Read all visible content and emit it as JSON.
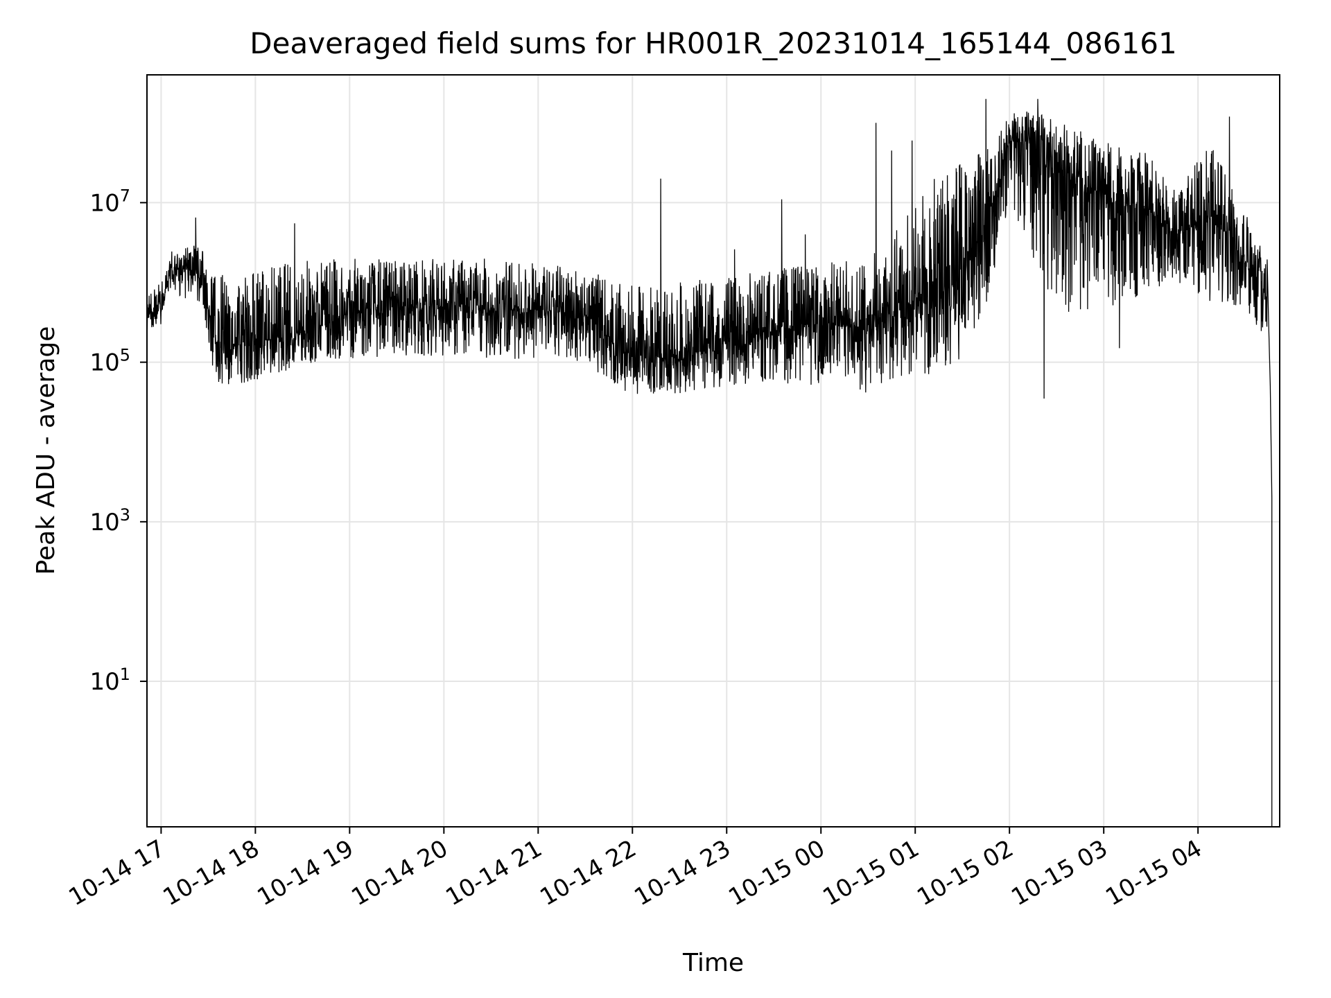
{
  "chart_data": {
    "type": "line",
    "title": "Deaveraged field sums for HR001R_20231014_165144_086161",
    "xlabel": "Time",
    "ylabel": "Peak ADU - average",
    "yscale": "log",
    "grid": true,
    "xlim": [
      "2023-10-14 16:51",
      "2023-10-15 04:52"
    ],
    "ylim": [
      0.15,
      400000000
    ],
    "x_ticks": [
      {
        "value": "2023-10-14 17:00",
        "label": "10-14 17"
      },
      {
        "value": "2023-10-14 18:00",
        "label": "10-14 18"
      },
      {
        "value": "2023-10-14 19:00",
        "label": "10-14 19"
      },
      {
        "value": "2023-10-14 20:00",
        "label": "10-14 20"
      },
      {
        "value": "2023-10-14 21:00",
        "label": "10-14 21"
      },
      {
        "value": "2023-10-14 22:00",
        "label": "10-14 22"
      },
      {
        "value": "2023-10-14 23:00",
        "label": "10-14 23"
      },
      {
        "value": "2023-10-15 00:00",
        "label": "10-15 00"
      },
      {
        "value": "2023-10-15 01:00",
        "label": "10-15 01"
      },
      {
        "value": "2023-10-15 02:00",
        "label": "10-15 02"
      },
      {
        "value": "2023-10-15 03:00",
        "label": "10-15 03"
      },
      {
        "value": "2023-10-15 04:00",
        "label": "10-15 04"
      }
    ],
    "y_ticks": [
      {
        "value": 10,
        "base": "10",
        "exp": "1"
      },
      {
        "value": 1000,
        "base": "10",
        "exp": "3"
      },
      {
        "value": 100000,
        "base": "10",
        "exp": "5"
      },
      {
        "value": 10000000,
        "base": "10",
        "exp": "7"
      }
    ],
    "series": [
      {
        "color": "#000000",
        "envelope": [
          {
            "t": "2023-10-14 16:51",
            "center": 400000,
            "low": 250000,
            "high": 900000
          },
          {
            "t": "2023-10-14 17:00",
            "center": 450000,
            "low": 300000,
            "high": 1000000
          },
          {
            "t": "2023-10-14 17:06",
            "center": 1500000,
            "low": 800000,
            "high": 2500000
          },
          {
            "t": "2023-10-14 17:24",
            "center": 1400000,
            "low": 500000,
            "high": 3000000
          },
          {
            "t": "2023-10-14 17:35",
            "center": 150000,
            "low": 45000,
            "high": 1200000
          },
          {
            "t": "2023-10-14 18:00",
            "center": 180000,
            "low": 60000,
            "high": 1500000
          },
          {
            "t": "2023-10-14 18:30",
            "center": 250000,
            "low": 90000,
            "high": 2000000
          },
          {
            "t": "2023-10-14 19:00",
            "center": 400000,
            "low": 110000,
            "high": 2000000
          },
          {
            "t": "2023-10-14 19:30",
            "center": 500000,
            "low": 120000,
            "high": 2000000
          },
          {
            "t": "2023-10-14 20:00",
            "center": 500000,
            "low": 120000,
            "high": 2000000
          },
          {
            "t": "2023-10-14 20:30",
            "center": 450000,
            "low": 110000,
            "high": 2000000
          },
          {
            "t": "2023-10-14 21:00",
            "center": 450000,
            "low": 110000,
            "high": 1800000
          },
          {
            "t": "2023-10-14 21:30",
            "center": 400000,
            "low": 100000,
            "high": 1500000
          },
          {
            "t": "2023-10-14 21:55",
            "center": 130000,
            "low": 40000,
            "high": 900000
          },
          {
            "t": "2023-10-14 22:30",
            "center": 110000,
            "low": 40000,
            "high": 1000000
          },
          {
            "t": "2023-10-14 23:00",
            "center": 180000,
            "low": 50000,
            "high": 1200000
          },
          {
            "t": "2023-10-14 23:30",
            "center": 250000,
            "low": 55000,
            "high": 1500000
          },
          {
            "t": "2023-10-15 00:00",
            "center": 300000,
            "low": 50000,
            "high": 1800000
          },
          {
            "t": "2023-10-15 00:30",
            "center": 250000,
            "low": 40000,
            "high": 2000000
          },
          {
            "t": "2023-10-15 00:55",
            "center": 500000,
            "low": 70000,
            "high": 8000000
          },
          {
            "t": "2023-10-15 01:20",
            "center": 800000,
            "low": 50000,
            "high": 30000000
          },
          {
            "t": "2023-10-15 01:45",
            "center": 5000000,
            "low": 500000,
            "high": 50000000
          },
          {
            "t": "2023-10-15 02:00",
            "center": 60000000,
            "low": 10000000,
            "high": 150000000
          },
          {
            "t": "2023-10-15 02:20",
            "center": 50000000,
            "low": 1000000,
            "high": 130000000
          },
          {
            "t": "2023-10-15 02:45",
            "center": 15000000,
            "low": 300000,
            "high": 80000000
          },
          {
            "t": "2023-10-15 03:00",
            "center": 10000000,
            "low": 400000,
            "high": 60000000
          },
          {
            "t": "2023-10-15 03:30",
            "center": 8000000,
            "low": 800000,
            "high": 40000000
          },
          {
            "t": "2023-10-15 03:45",
            "center": 3500000,
            "low": 1000000,
            "high": 15000000
          },
          {
            "t": "2023-10-15 04:10",
            "center": 8000000,
            "low": 500000,
            "high": 60000000
          },
          {
            "t": "2023-10-15 04:35",
            "center": 1200000,
            "low": 300000,
            "high": 5000000
          },
          {
            "t": "2023-10-15 04:44",
            "center": 700000,
            "low": 150000,
            "high": 2000000
          }
        ],
        "spikes": [
          {
            "t": "2023-10-14 17:22",
            "value": 6500000
          },
          {
            "t": "2023-10-14 18:25",
            "value": 5500000
          },
          {
            "t": "2023-10-14 22:18",
            "value": 20000000
          },
          {
            "t": "2023-10-14 23:05",
            "value": 2600000
          },
          {
            "t": "2023-10-14 23:35",
            "value": 11000000
          },
          {
            "t": "2023-10-14 23:50",
            "value": 4000000
          },
          {
            "t": "2023-10-15 00:35",
            "value": 100000000
          },
          {
            "t": "2023-10-15 00:45",
            "value": 45000000
          },
          {
            "t": "2023-10-15 00:58",
            "value": 60000000
          },
          {
            "t": "2023-10-15 01:45",
            "value": 200000000
          },
          {
            "t": "2023-10-15 02:18",
            "value": 200000000
          },
          {
            "t": "2023-10-15 02:22",
            "value": 35000
          },
          {
            "t": "2023-10-15 03:10",
            "value": 150000
          },
          {
            "t": "2023-10-15 04:20",
            "value": 120000000
          }
        ],
        "drop": [
          {
            "t": "2023-10-15 04:45",
            "value": 300000
          },
          {
            "t": "2023-10-15 04:46",
            "value": 50000
          },
          {
            "t": "2023-10-15 04:47",
            "value": 2000
          },
          {
            "t": "2023-10-15 04:47",
            "value": 0.15
          }
        ]
      }
    ]
  }
}
